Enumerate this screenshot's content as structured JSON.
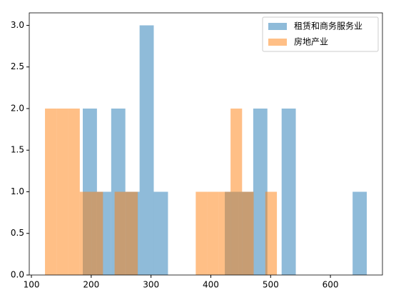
{
  "chart_data": {
    "type": "histogram",
    "xlim": [
      96.4,
      687
    ],
    "ylim": [
      0,
      3.15
    ],
    "xticks": [
      100,
      200,
      300,
      400,
      500,
      600
    ],
    "yticks": [
      {
        "value": 0,
        "label": "0.0"
      },
      {
        "value": 0.5,
        "label": "0.5"
      },
      {
        "value": 1,
        "label": "1.0"
      },
      {
        "value": 1.5,
        "label": "1.5"
      },
      {
        "value": 2,
        "label": "2.0"
      },
      {
        "value": 2.5,
        "label": "2.5"
      },
      {
        "value": 3,
        "label": "3.0"
      }
    ],
    "legend": "upper right",
    "series": [
      {
        "name": "租赁和商务服务业",
        "color": "#1f77b4",
        "bins": [
          185.9,
          209.6,
          233.4,
          257.1,
          280.9,
          304.6,
          328.4,
          352.1,
          375.9,
          399.6,
          423.4,
          447.1,
          470.9,
          494.6,
          518.4,
          542.1,
          565.9,
          589.6,
          613.4,
          637.1,
          660.8
        ],
        "values": [
          2,
          1,
          2,
          1,
          3,
          1,
          0,
          0,
          0,
          0,
          1,
          1,
          2,
          0,
          2,
          0,
          0,
          0,
          0,
          1
        ]
      },
      {
        "name": "房地产业",
        "color": "#ff7f0e",
        "bins": [
          122.7,
          142.1,
          161.5,
          180.9,
          200.3,
          219.7,
          239.1,
          258.4,
          277.8,
          297.2,
          316.6,
          336.0,
          355.4,
          374.8,
          394.2,
          413.6,
          433.0,
          452.3,
          471.7,
          491.1,
          510.5
        ],
        "values": [
          2,
          2,
          2,
          1,
          1,
          0,
          1,
          1,
          0,
          0,
          0,
          0,
          0,
          1,
          1,
          1,
          2,
          1,
          0,
          1
        ]
      }
    ]
  }
}
